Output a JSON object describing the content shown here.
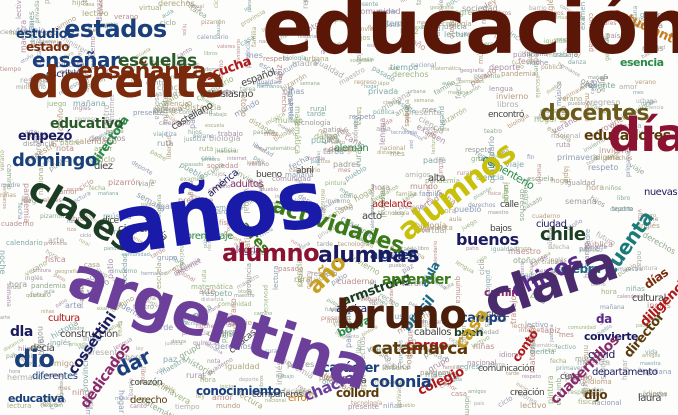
{
  "cloud": {
    "words": [
      {
        "text": "educación",
        "color": "#5a1708",
        "weight": 900
      },
      {
        "text": "años",
        "color": "#1a1aa8",
        "weight": 900
      },
      {
        "text": "argentina",
        "color": "#6b3f9a",
        "weight": 800
      },
      {
        "text": "docente",
        "color": "#7a2a0c",
        "weight": 800
      },
      {
        "text": "día",
        "color": "#8c1232",
        "weight": 800
      },
      {
        "text": "clara",
        "color": "#4a2b6e",
        "weight": 800
      },
      {
        "text": "bruno",
        "color": "#4a1e0a",
        "weight": 800
      },
      {
        "text": "alumnos",
        "color": "#c8c00a",
        "weight": 800
      },
      {
        "text": "clases",
        "color": "#1c3d24",
        "weight": 800
      },
      {
        "text": "estados",
        "color": "#1b3f7a",
        "weight": 700
      },
      {
        "text": "enseñanza",
        "color": "#7a2a0c",
        "weight": 700
      },
      {
        "text": "enseñar",
        "color": "#1b3f7a",
        "weight": 700
      },
      {
        "text": "alumno",
        "color": "#8c1232",
        "weight": 700
      },
      {
        "text": "alumnas",
        "color": "#1b1b60",
        "weight": 700
      },
      {
        "text": "actividades",
        "color": "#3a7a1a",
        "weight": 700
      },
      {
        "text": "docentes",
        "color": "#6b5a1a",
        "weight": 700
      },
      {
        "text": "chicos",
        "color": "#5a2a8a",
        "weight": 700
      },
      {
        "text": "escuelas",
        "color": "#2a5a2a",
        "weight": 700
      },
      {
        "text": "cuenta",
        "color": "#1a7a7a",
        "weight": 700
      },
      {
        "text": "dio",
        "color": "#1b3f7a",
        "weight": 700
      },
      {
        "text": "domingo",
        "color": "#1b3f7a",
        "weight": 700
      },
      {
        "text": "dar",
        "color": "#1b3f7a",
        "weight": 700
      },
      {
        "text": "catamarca",
        "color": "#5a3a0a",
        "weight": 700
      },
      {
        "text": "año",
        "color": "#c8a020",
        "weight": 700
      },
      {
        "text": "aprender",
        "color": "#3a7a1a",
        "weight": 700
      },
      {
        "text": "casa",
        "color": "#c8a020",
        "weight": 700
      },
      {
        "text": "cargo",
        "color": "#b0181a",
        "weight": 700
      },
      {
        "text": "buenos",
        "color": "#1b1b60",
        "weight": 700
      },
      {
        "text": "colonia",
        "color": "#1b3f7a",
        "weight": 700
      },
      {
        "text": "educadores",
        "color": "#5a3a0a",
        "weight": 700
      },
      {
        "text": "chile",
        "color": "#1c3d24",
        "weight": 700
      },
      {
        "text": "chacras",
        "color": "#6b3f9a",
        "weight": 700
      },
      {
        "text": "educativo",
        "color": "#2a5a2a",
        "weight": 700
      },
      {
        "text": "estudiantes",
        "color": "#c87a20",
        "weight": 700
      },
      {
        "text": "estudios",
        "color": "#1b3f7a",
        "weight": 600
      },
      {
        "text": "estado",
        "color": "#7a2a0c",
        "weight": 600
      },
      {
        "text": "escucha",
        "color": "#b0181a",
        "weight": 600
      },
      {
        "text": "empezó",
        "color": "#1b1b60",
        "weight": 600
      },
      {
        "text": "directora",
        "color": "#2a8a4a",
        "weight": 600
      },
      {
        "text": "alguien",
        "color": "#1b3f7a",
        "weight": 600
      },
      {
        "text": "armstrong",
        "color": "#1c3d24",
        "weight": 600
      },
      {
        "text": "brasil",
        "color": "#1a6a8a",
        "weight": 600
      },
      {
        "text": "colegio",
        "color": "#b0181a",
        "weight": 600
      },
      {
        "text": "collord",
        "color": "#5a3a0a",
        "weight": 600
      },
      {
        "text": "carácter",
        "color": "#1b3f7a",
        "weight": 600
      },
      {
        "text": "campo",
        "color": "#1b3f7a",
        "weight": 600
      },
      {
        "text": "celebra",
        "color": "#1a6a8a",
        "weight": 600
      },
      {
        "text": "cuadernillos",
        "color": "#8a2a6a",
        "weight": 600
      },
      {
        "text": "director",
        "color": "#5a3a0a",
        "weight": 600
      },
      {
        "text": "diligencia",
        "color": "#b0181a",
        "weight": 600
      },
      {
        "text": "días",
        "color": "#7a2a0c",
        "weight": 600
      },
      {
        "text": "conocimiento",
        "color": "#1b3f7a",
        "weight": 600
      },
      {
        "text": "cossettini",
        "color": "#1b1b60",
        "weight": 600
      },
      {
        "text": "dedicados",
        "color": "#8a2a6a",
        "weight": 600
      },
      {
        "text": "contó",
        "color": "#b0181a",
        "weight": 600
      },
      {
        "text": "dijo",
        "color": "#5a3a0a",
        "weight": 600
      },
      {
        "text": "esencia",
        "color": "#2a8a4a",
        "weight": 600
      },
      {
        "text": "dla",
        "color": "#1b1b60",
        "weight": 600
      },
      {
        "text": "educativa",
        "color": "#1b3f7a",
        "weight": 600
      },
      {
        "text": "bolívar",
        "color": "#2a8a4a",
        "weight": 600
      },
      {
        "text": "convierte",
        "color": "#1b1b60",
        "weight": 600
      },
      {
        "text": "camino",
        "color": "#8a2a6a",
        "weight": 600
      },
      {
        "text": "aires",
        "color": "#3a7a1a",
        "weight": 600
      },
      {
        "text": "buen",
        "color": "#1c3d24",
        "weight": 600
      },
      {
        "text": "aula",
        "color": "#1a6a8a",
        "weight": 600
      },
      {
        "text": "da",
        "color": "#5a2a8a",
        "weight": 600
      },
      {
        "text": "ciencias",
        "color": "#444444",
        "weight": 400
      },
      {
        "text": "adultos",
        "color": "#8a2a6a",
        "weight": 400
      },
      {
        "text": "alemán",
        "color": "#2a8a4a",
        "weight": 400
      },
      {
        "text": "cementerio",
        "color": "#2a8a4a",
        "weight": 400
      },
      {
        "text": "aspira",
        "color": "#1b1b60",
        "weight": 400
      },
      {
        "text": "departamento",
        "color": "#1b1b60",
        "weight": 400
      },
      {
        "text": "cultural",
        "color": "#444444",
        "weight": 400
      },
      {
        "text": "covid",
        "color": "#1b1b60",
        "weight": 400
      },
      {
        "text": "derecho",
        "color": "#5a3a0a",
        "weight": 400
      },
      {
        "text": "diferentes",
        "color": "#1b3f7a",
        "weight": 400
      },
      {
        "text": "decía",
        "color": "#444444",
        "weight": 400
      },
      {
        "text": "ciudad",
        "color": "#1b1b60",
        "weight": 400
      },
      {
        "text": "calle",
        "color": "#444444",
        "weight": 400
      },
      {
        "text": "nuevas",
        "color": "#1b1b60",
        "weight": 400
      },
      {
        "text": "alegría",
        "color": "#8a2a6a",
        "weight": 400
      },
      {
        "text": "bolivia",
        "color": "#444444",
        "weight": 400
      },
      {
        "text": "américa",
        "color": "#1b1b60",
        "weight": 400
      },
      {
        "text": "laura",
        "color": "#444444",
        "weight": 400
      },
      {
        "text": "error",
        "color": "#c87a20",
        "weight": 400
      },
      {
        "text": "cuya",
        "color": "#444444",
        "weight": 400
      },
      {
        "text": "escribió",
        "color": "#1b1b60",
        "weight": 400
      },
      {
        "text": "diez",
        "color": "#444444",
        "weight": 400
      },
      {
        "text": "cultura",
        "color": "#b0181a",
        "weight": 400
      },
      {
        "text": "español",
        "color": "#444444",
        "weight": 400
      },
      {
        "text": "entusiasmo",
        "color": "#444444",
        "weight": 400
      },
      {
        "text": "castellano",
        "color": "#444444",
        "weight": 400
      },
      {
        "text": "adelante",
        "color": "#b0181a",
        "weight": 400
      },
      {
        "text": "acto",
        "color": "#444444",
        "weight": 400
      },
      {
        "text": "aprendizaje",
        "color": "#2a8a4a",
        "weight": 400
      },
      {
        "text": "bajos",
        "color": "#444444",
        "weight": 400
      },
      {
        "text": "construcción",
        "color": "#444444",
        "weight": 400
      },
      {
        "text": "creación",
        "color": "#444444",
        "weight": 400
      },
      {
        "text": "corazón",
        "color": "#444444",
        "weight": 400
      },
      {
        "text": "compañeros",
        "color": "#444444",
        "weight": 400
      },
      {
        "text": "caballos",
        "color": "#444444",
        "weight": 400
      },
      {
        "text": "caracas",
        "color": "#444444",
        "weight": 400
      },
      {
        "text": "dice",
        "color": "#444444",
        "weight": 400
      },
      {
        "text": "clase",
        "color": "#444444",
        "weight": 400
      },
      {
        "text": "comunicación",
        "color": "#444444",
        "weight": 400
      },
      {
        "text": "encontró",
        "color": "#444444",
        "weight": 400
      },
      {
        "text": "alta",
        "color": "#444444",
        "weight": 400
      },
      {
        "text": "abril",
        "color": "#444444",
        "weight": 400
      },
      {
        "text": "bueno",
        "color": "#444444",
        "weight": 400
      },
      {
        "text": "ciencia",
        "color": "#444444",
        "weight": 400
      }
    ],
    "filler": [
      "escuela",
      "maestra",
      "maestro",
      "libro",
      "libros",
      "lectura",
      "historia",
      "trabajo",
      "niños",
      "niñas",
      "vida",
      "mundo",
      "país",
      "pueblo",
      "tiempo",
      "grupo",
      "aula",
      "patio",
      "recreo",
      "examen",
      "nota",
      "tarea",
      "cuaderno",
      "lápiz",
      "pizarrón",
      "tiza",
      "rural",
      "urbana",
      "pública",
      "privada",
      "ministerio",
      "provincia",
      "nacional",
      "ley",
      "derechos",
      "familia",
      "padres",
      "madre",
      "padre",
      "hijos",
      "hermanos",
      "amigos",
      "juego",
      "deporte",
      "arte",
      "música",
      "canto",
      "teatro",
      "danza",
      "pintura",
      "ciencia",
      "matemática",
      "lengua",
      "idioma",
      "inglés",
      "geografía",
      "física",
      "química",
      "biología",
      "tecnología",
      "internet",
      "virtual",
      "distancia",
      "pandemia",
      "regreso",
      "inicio",
      "fin",
      "ciclo",
      "lectivo",
      "calendario",
      "fecha",
      "mes",
      "semana",
      "hora",
      "mañana",
      "tarde",
      "noche",
      "verano",
      "invierno",
      "otoño",
      "primavera",
      "viaje",
      "ruta",
      "camino",
      "pueblo",
      "barrio",
      "casa",
      "hogar",
      "comunidad",
      "sociedad",
      "valores",
      "respeto",
      "amor",
      "paz",
      "libertad",
      "justicia",
      "igualdad",
      "futuro",
      "pasado",
      "presente"
    ]
  }
}
